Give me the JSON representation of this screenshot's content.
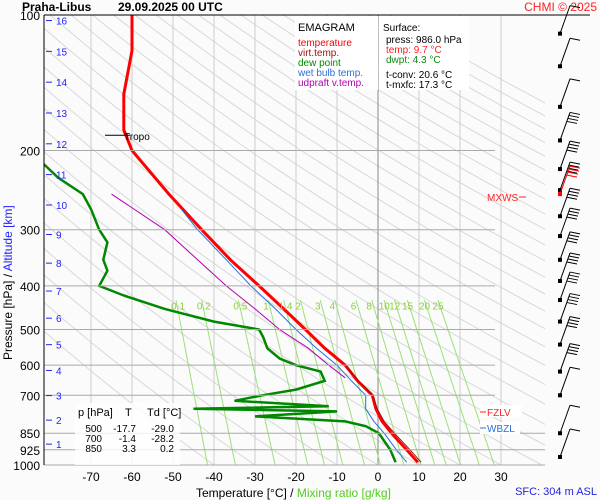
{
  "header": {
    "station": "Praha-Libus",
    "datetime": "29.09.2025 00 UTC",
    "copyright": "CHMI © 2025"
  },
  "footer": {
    "sfc": "SFC: 304 m ASL"
  },
  "legend": {
    "title": "EMAGRAM",
    "items": [
      {
        "label": "temperature",
        "color": "#ff0000"
      },
      {
        "label": "virt.temp.",
        "color": "#a01010"
      },
      {
        "label": "dew point",
        "color": "#008800"
      },
      {
        "label": "wet bulb temp.",
        "color": "#2a6fdb"
      },
      {
        "label": "udpraft v.temp.",
        "color": "#b000b0"
      }
    ]
  },
  "surface": {
    "title": "Surface:",
    "press": "press: 986.0 hPa",
    "temp": "temp: 9.7 °C",
    "dwpt": "dwpt: 4.3 °C",
    "tconv": "t-conv: 20.6 °C",
    "tmxfc": "t-mxfc: 17.3 °C"
  },
  "table": {
    "headers": [
      "p [hPa]",
      "T",
      "Td [°C]"
    ],
    "rows": [
      [
        "500",
        "-17.7",
        "-29.0"
      ],
      [
        "700",
        "-1.4",
        "-28.2"
      ],
      [
        "850",
        "3.3",
        "0.2"
      ]
    ]
  },
  "markers": {
    "tropo": "Tropo",
    "mxws": "MXWS",
    "fzlv": "FZLV",
    "wbzl": "WBZL"
  },
  "chart_data": {
    "type": "line",
    "xlabel": "Temperature [°C]",
    "xlabel2": "Mixing ratio [g/kg]",
    "ylabel": "Pressure [hPa]",
    "ylabel2": "Altitude [km]",
    "xlim": [
      -80,
      42
    ],
    "ylim": [
      1000,
      100
    ],
    "yscale": "log",
    "x_ticks": [
      -70,
      -60,
      -50,
      -40,
      -30,
      -20,
      -10,
      0,
      10,
      20,
      30
    ],
    "y_ticks": [
      100,
      200,
      300,
      400,
      500,
      600,
      700,
      850,
      925,
      1000
    ],
    "km_ticks": [
      1,
      2,
      3,
      4,
      5,
      6,
      7,
      8,
      9,
      10,
      11,
      12,
      13,
      14,
      15,
      16
    ],
    "mixing_ratio_labels": [
      "0.1",
      "0.2",
      "0.5",
      "1",
      "1.4",
      "2",
      "3",
      "4",
      "6",
      "8",
      "10",
      "12",
      "15",
      "20",
      "25"
    ],
    "series": [
      {
        "name": "temperature",
        "color": "#ff0000",
        "p": [
          986,
          925,
          850,
          800,
          750,
          700,
          650,
          600,
          550,
          500,
          450,
          400,
          350,
          300,
          250,
          200,
          180,
          150,
          120,
          100
        ],
        "T": [
          9.7,
          7,
          3.3,
          1,
          -0.5,
          -1.4,
          -5,
          -8,
          -13,
          -17.7,
          -23,
          -29,
          -36,
          -43,
          -51,
          -60,
          -62,
          -62,
          -60,
          -60
        ]
      },
      {
        "name": "virt.temp.",
        "color": "#a01010",
        "p": [
          986,
          925,
          850,
          800,
          750,
          700,
          650,
          600
        ],
        "T": [
          10.5,
          7.8,
          4,
          1.5,
          -0.2,
          -1.2,
          -4.9,
          -7.9
        ]
      },
      {
        "name": "dew point",
        "color": "#008800",
        "p": [
          986,
          925,
          850,
          820,
          800,
          780,
          760,
          750,
          740,
          720,
          700,
          680,
          650,
          620,
          600,
          580,
          550,
          520,
          500,
          480,
          450,
          420,
          400,
          370,
          350,
          320,
          300,
          270,
          250,
          230,
          200,
          185
        ],
        "T": [
          4.3,
          3,
          0.2,
          -3,
          -8,
          -30,
          -10,
          -45,
          -12,
          -35,
          -28.2,
          -20,
          -13,
          -14,
          -20,
          -24,
          -27,
          -28,
          -29,
          -40,
          -52,
          -62,
          -68,
          -66,
          -67,
          -66,
          -68,
          -70,
          -72,
          -78,
          -85,
          -90
        ]
      },
      {
        "name": "wet bulb temp.",
        "color": "#2a6fdb",
        "p": [
          986,
          925,
          850,
          800,
          750,
          700,
          650,
          600,
          550,
          500,
          450,
          400,
          350,
          300,
          270
        ],
        "T": [
          7,
          4.5,
          1.5,
          -1,
          -3,
          -3,
          -6.5,
          -10,
          -15,
          -20,
          -25,
          -31,
          -37,
          -44,
          -48
        ]
      },
      {
        "name": "udpraft v.temp.",
        "color": "#b000b0",
        "p": [
          640,
          600,
          550,
          500,
          450,
          400,
          350,
          300,
          250
        ],
        "T": [
          -8,
          -12,
          -17,
          -24,
          -30,
          -37,
          -44,
          -52,
          -65
        ]
      }
    ],
    "tropopause_hPa": 185,
    "wind_levels_hPa": [
      110,
      130,
      160,
      190,
      220,
      245,
      250,
      280,
      310,
      350,
      390,
      430,
      480,
      540,
      620,
      700,
      850,
      960
    ]
  }
}
